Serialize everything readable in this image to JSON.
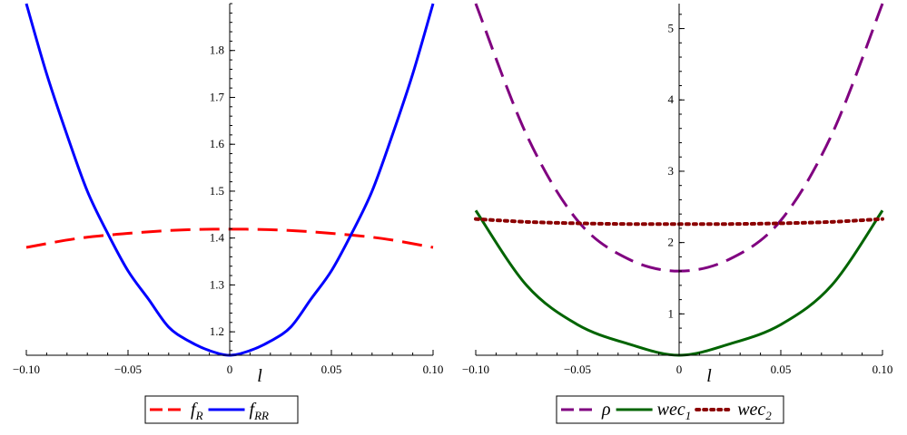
{
  "chart_data": [
    {
      "type": "line",
      "title": "",
      "xlabel": "l",
      "ylabel": "",
      "xlim": [
        -0.1,
        0.1
      ],
      "ylim": [
        1.15,
        1.9
      ],
      "grid": false,
      "legend_position": "bottom",
      "x_ticks": [
        -0.1,
        -0.05,
        0,
        0.05,
        0.1
      ],
      "x_tick_labels": [
        "−0.10",
        "−0.05",
        "0",
        "0.05",
        "0.10"
      ],
      "y_ticks": [
        1.2,
        1.3,
        1.4,
        1.5,
        1.6,
        1.7,
        1.8
      ],
      "y_tick_labels": [
        "1.2",
        "1.3",
        "1.4",
        "1.5",
        "1.6",
        "1.7",
        "1.8"
      ],
      "series": [
        {
          "name": "f_R",
          "legend_main": "f",
          "legend_sub": "R",
          "color": "#ff0000",
          "dash": "longdash",
          "x": [
            -0.1,
            -0.075,
            -0.05,
            -0.025,
            0,
            0.025,
            0.05,
            0.075,
            0.1
          ],
          "y": [
            1.38,
            1.399,
            1.41,
            1.417,
            1.419,
            1.417,
            1.41,
            1.399,
            1.38
          ]
        },
        {
          "name": "f_RR",
          "legend_main": "f",
          "legend_sub": "RR",
          "color": "#0000ff",
          "dash": "solid",
          "x": [
            -0.1,
            -0.09,
            -0.08,
            -0.07,
            -0.06,
            -0.05,
            -0.04,
            -0.03,
            -0.02,
            -0.01,
            0,
            0.01,
            0.02,
            0.03,
            0.04,
            0.05,
            0.06,
            0.07,
            0.08,
            0.09,
            0.1
          ],
          "y": [
            1.9,
            1.75,
            1.62,
            1.5,
            1.41,
            1.33,
            1.27,
            1.21,
            1.18,
            1.16,
            1.15,
            1.16,
            1.18,
            1.21,
            1.27,
            1.33,
            1.41,
            1.5,
            1.62,
            1.75,
            1.9
          ]
        }
      ]
    },
    {
      "type": "line",
      "title": "",
      "xlabel": "l",
      "ylabel": "",
      "xlim": [
        -0.1,
        0.1
      ],
      "ylim": [
        0.42,
        5.35
      ],
      "grid": false,
      "legend_position": "bottom",
      "x_ticks": [
        -0.1,
        -0.05,
        0,
        0.05,
        0.1
      ],
      "x_tick_labels": [
        "−0.10",
        "−0.05",
        "0",
        "0.05",
        "0.10"
      ],
      "y_ticks": [
        1,
        2,
        3,
        4,
        5
      ],
      "y_tick_labels": [
        "1",
        "2",
        "3",
        "4",
        "5"
      ],
      "series": [
        {
          "name": "ρ",
          "legend_main": "ρ",
          "legend_sub": "",
          "color": "#800080",
          "dash": "longdash",
          "x": [
            -0.1,
            -0.075,
            -0.05,
            -0.025,
            0,
            0.025,
            0.05,
            0.075,
            0.1
          ],
          "y": [
            5.35,
            3.51,
            2.31,
            1.77,
            1.6,
            1.77,
            2.31,
            3.51,
            5.35
          ]
        },
        {
          "name": "wec_1",
          "legend_main": "wec",
          "legend_sub": "1",
          "color": "#006400",
          "dash": "solid",
          "x": [
            -0.1,
            -0.075,
            -0.05,
            -0.025,
            0,
            0.025,
            0.05,
            0.075,
            0.1
          ],
          "y": [
            2.45,
            1.4,
            0.85,
            0.58,
            0.42,
            0.58,
            0.85,
            1.4,
            2.45
          ]
        },
        {
          "name": "wec_2",
          "legend_main": "wec",
          "legend_sub": "2",
          "color": "#8b0000",
          "dash": "dotted",
          "x": [
            -0.1,
            -0.075,
            -0.05,
            -0.025,
            0,
            0.025,
            0.05,
            0.075,
            0.1
          ],
          "y": [
            2.33,
            2.29,
            2.27,
            2.26,
            2.26,
            2.26,
            2.27,
            2.29,
            2.33
          ]
        }
      ]
    }
  ]
}
